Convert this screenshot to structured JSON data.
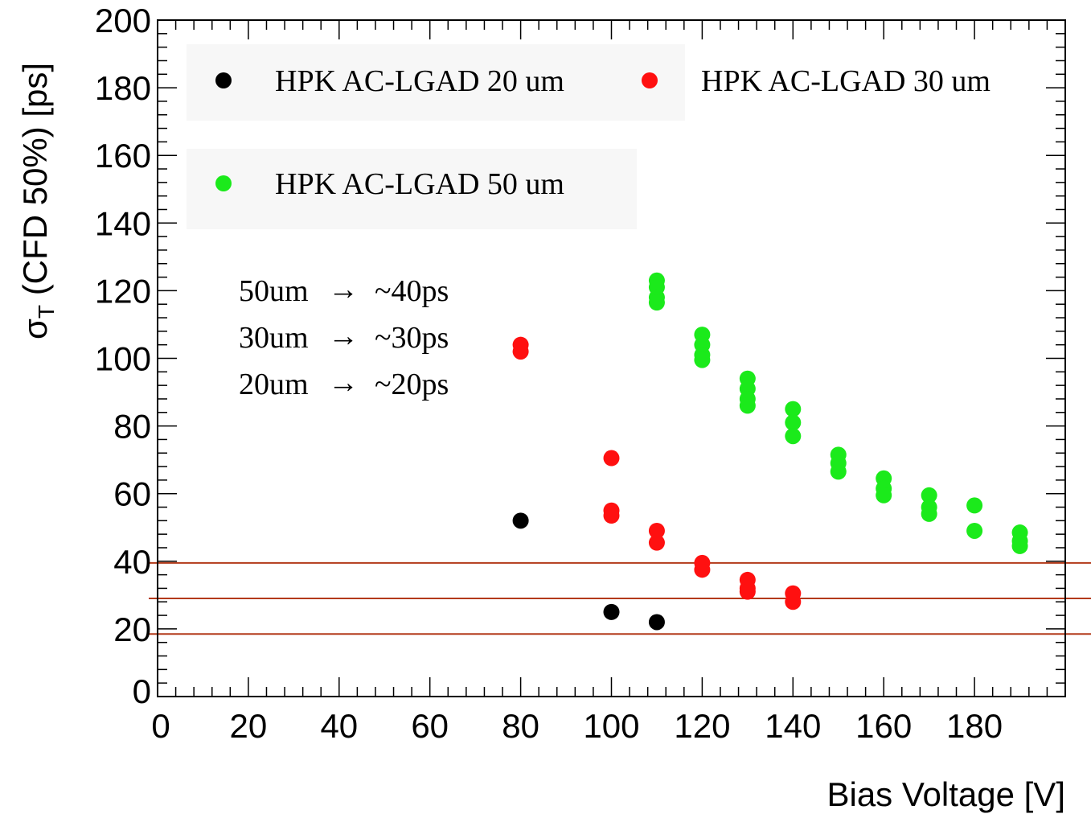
{
  "chart_data": {
    "type": "scatter",
    "xlabel": "Bias Voltage [V]",
    "ylabel_main": "σ",
    "ylabel_sub": "T",
    "ylabel_rest": " (CFD 50%) [ps]",
    "xlim": [
      0,
      200
    ],
    "ylim": [
      0,
      200
    ],
    "x_ticks": [
      0,
      20,
      40,
      60,
      80,
      100,
      120,
      140,
      160,
      180
    ],
    "y_ticks": [
      0,
      20,
      40,
      60,
      80,
      100,
      120,
      140,
      160,
      180,
      200
    ],
    "grid": false,
    "legend_position": "top-left",
    "series": [
      {
        "name": "HPK AC-LGAD 20 um",
        "color": "#000000",
        "points": [
          [
            80,
            52
          ],
          [
            100,
            25
          ],
          [
            110,
            22
          ]
        ]
      },
      {
        "name": "HPK AC-LGAD 30 um",
        "color": "#ff1010",
        "points": [
          [
            80,
            104
          ],
          [
            80,
            102
          ],
          [
            100,
            70.5
          ],
          [
            100,
            55
          ],
          [
            100,
            53.5
          ],
          [
            110,
            49
          ],
          [
            110,
            45.5
          ],
          [
            120,
            39.5
          ],
          [
            120,
            37.5
          ],
          [
            130,
            34.5
          ],
          [
            130,
            32
          ],
          [
            130,
            31
          ],
          [
            140,
            30.5
          ],
          [
            140,
            28
          ]
        ]
      },
      {
        "name": "HPK AC-LGAD 50 um",
        "color": "#1bea1b",
        "points": [
          [
            110,
            123
          ],
          [
            110,
            121
          ],
          [
            110,
            118
          ],
          [
            110,
            116.5
          ],
          [
            120,
            107
          ],
          [
            120,
            104
          ],
          [
            120,
            101
          ],
          [
            120,
            99.5
          ],
          [
            130,
            94
          ],
          [
            130,
            91
          ],
          [
            130,
            88
          ],
          [
            130,
            86
          ],
          [
            140,
            85
          ],
          [
            140,
            81
          ],
          [
            140,
            77
          ],
          [
            150,
            71.5
          ],
          [
            150,
            69
          ],
          [
            150,
            66.5
          ],
          [
            160,
            64.5
          ],
          [
            160,
            61.5
          ],
          [
            160,
            59.5
          ],
          [
            170,
            59.5
          ],
          [
            170,
            56
          ],
          [
            170,
            54
          ],
          [
            180,
            56.5
          ],
          [
            180,
            49
          ],
          [
            190,
            48.5
          ],
          [
            190,
            46
          ],
          [
            190,
            44.5
          ]
        ]
      }
    ],
    "reference_lines": [
      {
        "y": 39.5,
        "color": "#b33a1a"
      },
      {
        "y": 29,
        "color": "#b33a1a"
      },
      {
        "y": 18.5,
        "color": "#b33a1a"
      }
    ],
    "annotations": [
      {
        "left": "50um",
        "right": "~40ps"
      },
      {
        "left": "30um",
        "right": "~30ps"
      },
      {
        "left": "20um",
        "right": "~20ps"
      }
    ],
    "arrow_glyph": "→"
  }
}
